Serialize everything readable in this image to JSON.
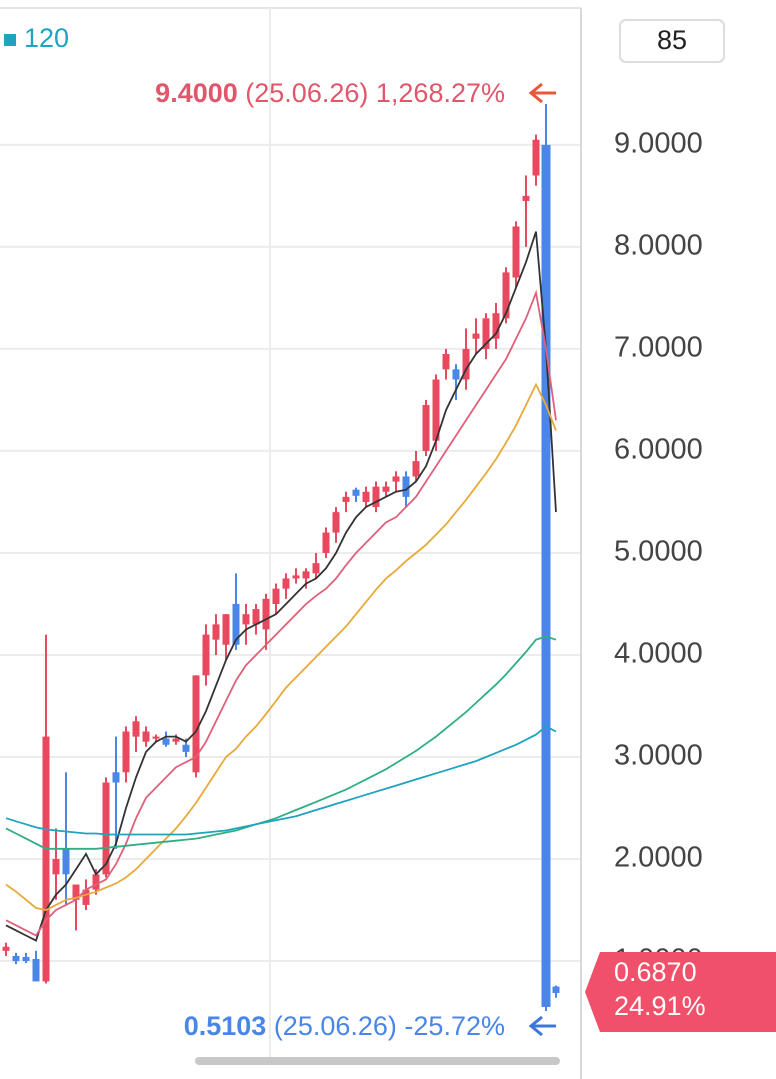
{
  "chart_data": {
    "type": "candlestick",
    "ylim": [
      0.03,
      10.42
    ],
    "yticks": [
      {
        "value": 1,
        "label": "1.0000"
      },
      {
        "value": 2,
        "label": "2.0000"
      },
      {
        "value": 3,
        "label": "3.0000"
      },
      {
        "value": 4,
        "label": "4.0000"
      },
      {
        "value": 5,
        "label": "5.0000"
      },
      {
        "value": 6,
        "label": "6.0000"
      },
      {
        "value": 7,
        "label": "7.0000"
      },
      {
        "value": 8,
        "label": "8.0000"
      },
      {
        "value": 9,
        "label": "9.0000"
      }
    ],
    "grid": true,
    "up_color": "#e8495f",
    "down_color": "#4a86e8",
    "open": [
      1.1,
      1.05,
      1.04,
      1.02,
      0.8,
      1.85,
      2.1,
      1.6,
      1.55,
      1.7,
      1.85,
      2.85,
      2.85,
      3.2,
      3.15,
      3.18,
      3.18,
      3.15,
      3.12,
      2.85,
      3.8,
      4.15,
      4.1,
      4.5,
      4.3,
      4.3,
      4.25,
      4.5,
      4.65,
      4.75,
      4.75,
      4.8,
      5.0,
      5.2,
      5.5,
      5.62,
      5.5,
      5.45,
      5.6,
      5.7,
      5.75,
      5.75,
      6.0,
      6.1,
      6.8,
      6.8,
      6.7,
      7.1,
      7.0,
      7.1,
      7.3,
      7.7,
      8.45,
      8.7,
      9.0,
      0.75
    ],
    "high": [
      1.18,
      1.08,
      1.08,
      1.1,
      4.2,
      2.3,
      2.85,
      1.75,
      1.8,
      1.9,
      2.8,
      3.2,
      3.3,
      3.4,
      3.3,
      3.22,
      3.25,
      3.22,
      3.18,
      3.8,
      4.3,
      4.4,
      4.4,
      4.8,
      4.5,
      4.5,
      4.6,
      4.7,
      4.8,
      4.85,
      4.85,
      5.0,
      5.25,
      5.45,
      5.6,
      5.64,
      5.65,
      5.7,
      5.7,
      5.8,
      5.8,
      6.0,
      6.5,
      6.75,
      7.0,
      6.85,
      7.2,
      7.3,
      7.35,
      7.45,
      7.8,
      8.25,
      8.7,
      9.1,
      9.4,
      0.76
    ],
    "low": [
      1.05,
      0.97,
      0.98,
      0.8,
      0.78,
      1.6,
      1.55,
      1.3,
      1.5,
      1.65,
      1.82,
      2.1,
      2.75,
      3.05,
      3.1,
      3.15,
      3.1,
      3.12,
      3.0,
      2.8,
      3.7,
      4.0,
      3.95,
      4.05,
      4.1,
      4.2,
      4.05,
      4.4,
      4.55,
      4.7,
      4.65,
      4.75,
      4.95,
      5.1,
      5.4,
      5.5,
      5.45,
      5.4,
      5.55,
      5.6,
      5.45,
      5.7,
      5.95,
      6.0,
      6.7,
      6.5,
      6.6,
      6.95,
      6.9,
      7.0,
      7.25,
      7.6,
      8.0,
      8.6,
      0.5103,
      0.64
    ],
    "close": [
      1.14,
      1.0,
      1.0,
      0.8,
      3.2,
      2.0,
      1.85,
      1.75,
      1.7,
      1.85,
      2.75,
      2.75,
      3.25,
      3.35,
      3.25,
      3.2,
      3.12,
      3.18,
      3.05,
      3.8,
      4.2,
      4.3,
      4.4,
      4.1,
      4.4,
      4.45,
      4.55,
      4.65,
      4.75,
      4.78,
      4.82,
      4.9,
      5.2,
      5.4,
      5.55,
      5.56,
      5.6,
      5.65,
      5.65,
      5.75,
      5.55,
      5.9,
      6.45,
      6.7,
      6.95,
      6.7,
      7.0,
      7.15,
      7.3,
      7.35,
      7.75,
      8.2,
      8.5,
      9.05,
      0.55,
      0.687
    ],
    "series": [
      {
        "color": "#333333",
        "values": [
          1.35,
          1.3,
          1.25,
          1.2,
          1.5,
          1.65,
          1.75,
          1.9,
          2.05,
          1.85,
          1.95,
          2.15,
          2.5,
          2.8,
          3.05,
          3.15,
          3.2,
          3.2,
          3.15,
          3.25,
          3.45,
          3.7,
          3.95,
          4.15,
          4.25,
          4.3,
          4.35,
          4.4,
          4.5,
          4.6,
          4.7,
          4.75,
          4.85,
          5.0,
          5.2,
          5.35,
          5.45,
          5.5,
          5.55,
          5.6,
          5.62,
          5.7,
          5.85,
          6.1,
          6.4,
          6.6,
          6.8,
          6.95,
          7.05,
          7.15,
          7.35,
          7.6,
          7.85,
          8.15,
          7.0,
          5.4
        ]
      },
      {
        "color": "#e0607a",
        "values": [
          1.4,
          1.35,
          1.3,
          1.25,
          1.4,
          1.5,
          1.55,
          1.6,
          1.7,
          1.75,
          1.8,
          1.95,
          2.15,
          2.4,
          2.6,
          2.7,
          2.8,
          2.9,
          2.95,
          3.0,
          3.15,
          3.35,
          3.55,
          3.75,
          3.9,
          4.0,
          4.1,
          4.2,
          4.3,
          4.4,
          4.5,
          4.58,
          4.65,
          4.75,
          4.88,
          5.0,
          5.1,
          5.2,
          5.3,
          5.35,
          5.45,
          5.55,
          5.7,
          5.85,
          6.0,
          6.15,
          6.3,
          6.45,
          6.6,
          6.75,
          6.9,
          7.1,
          7.3,
          7.55,
          7.0,
          6.3
        ]
      },
      {
        "color": "#e8a93a",
        "values": [
          1.75,
          1.68,
          1.6,
          1.52,
          1.5,
          1.55,
          1.6,
          1.62,
          1.65,
          1.68,
          1.72,
          1.76,
          1.82,
          1.9,
          2.0,
          2.1,
          2.2,
          2.3,
          2.42,
          2.55,
          2.7,
          2.85,
          3.0,
          3.08,
          3.2,
          3.3,
          3.42,
          3.55,
          3.68,
          3.78,
          3.88,
          3.98,
          4.08,
          4.18,
          4.28,
          4.4,
          4.52,
          4.64,
          4.75,
          4.83,
          4.92,
          5.0,
          5.08,
          5.18,
          5.28,
          5.4,
          5.52,
          5.65,
          5.78,
          5.92,
          6.08,
          6.25,
          6.45,
          6.65,
          6.45,
          6.2
        ]
      },
      {
        "color": "#2fae84",
        "values": [
          2.3,
          2.25,
          2.2,
          2.15,
          2.1,
          2.1,
          2.1,
          2.1,
          2.1,
          2.1,
          2.11,
          2.12,
          2.13,
          2.14,
          2.15,
          2.16,
          2.17,
          2.18,
          2.19,
          2.2,
          2.22,
          2.24,
          2.26,
          2.28,
          2.31,
          2.34,
          2.37,
          2.4,
          2.44,
          2.48,
          2.52,
          2.56,
          2.6,
          2.64,
          2.68,
          2.73,
          2.78,
          2.83,
          2.88,
          2.94,
          3.0,
          3.06,
          3.13,
          3.2,
          3.28,
          3.36,
          3.44,
          3.53,
          3.62,
          3.71,
          3.81,
          3.92,
          4.03,
          4.15,
          4.18,
          4.15
        ]
      },
      {
        "name": "120",
        "color": "#1fa3bf",
        "values": [
          2.4,
          2.37,
          2.34,
          2.31,
          2.29,
          2.28,
          2.27,
          2.26,
          2.25,
          2.25,
          2.24,
          2.24,
          2.24,
          2.24,
          2.24,
          2.24,
          2.24,
          2.24,
          2.24,
          2.25,
          2.26,
          2.27,
          2.28,
          2.3,
          2.32,
          2.34,
          2.36,
          2.38,
          2.4,
          2.42,
          2.45,
          2.48,
          2.51,
          2.54,
          2.57,
          2.6,
          2.63,
          2.66,
          2.69,
          2.72,
          2.75,
          2.78,
          2.81,
          2.84,
          2.87,
          2.9,
          2.93,
          2.96,
          3.0,
          3.04,
          3.08,
          3.12,
          3.17,
          3.22,
          3.3,
          3.25
        ]
      }
    ],
    "period_box": "85",
    "max_annotation": {
      "price": "9.4000",
      "date": "(25.06.26)",
      "change": "1,268.27%"
    },
    "min_annotation": {
      "price": "0.5103",
      "date": "(25.06.26)",
      "change": "-25.72%"
    },
    "last_price": {
      "price": "0.6870",
      "change": "24.91%"
    }
  }
}
